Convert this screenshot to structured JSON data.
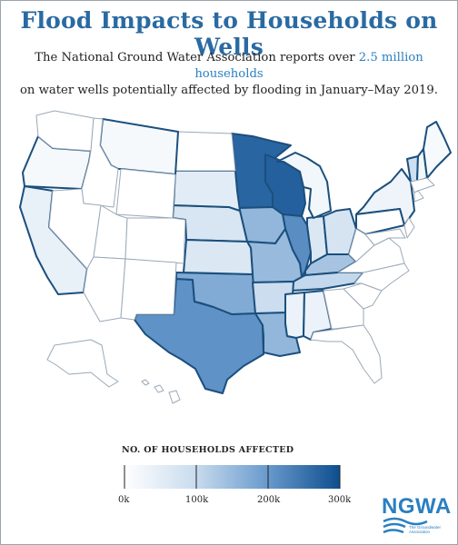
{
  "title": "Flood Impacts to Households on Wells",
  "subtitle": {
    "line1_before": "The National Ground Water Association reports over ",
    "line1_highlight": "2.5 million households",
    "line2": "on water wells potentially affected by flooding in January–May 2019."
  },
  "legend": {
    "title": "NO. OF HOUSEHOLDS AFFECTED",
    "ticks": [
      "0k",
      "100k",
      "200k",
      "300k"
    ],
    "min": 0,
    "max": 300000,
    "color_low": "#ffffff",
    "color_high": "#0e4e8e"
  },
  "logo": {
    "text": "NGWA",
    "tagline": "The Groundwater Association"
  },
  "colors": {
    "title": "#2a6aa2",
    "highlight": "#2a7fc1",
    "affected_border": "#1b4f7d",
    "unaffected_border": "#9aa9b8"
  },
  "map_data": {
    "type": "choropleth",
    "region": "United States",
    "states": [
      {
        "state": "Minnesota",
        "level": 0.9,
        "highlighted": true
      },
      {
        "state": "Wisconsin",
        "level": 0.92,
        "highlighted": true
      },
      {
        "state": "Texas",
        "level": 0.7,
        "highlighted": true
      },
      {
        "state": "Illinois",
        "level": 0.72,
        "highlighted": true
      },
      {
        "state": "Iowa",
        "level": 0.52,
        "highlighted": true
      },
      {
        "state": "Missouri",
        "level": 0.5,
        "highlighted": true
      },
      {
        "state": "Oklahoma",
        "level": 0.58,
        "highlighted": true
      },
      {
        "state": "Louisiana",
        "level": 0.52,
        "highlighted": true
      },
      {
        "state": "Kentucky",
        "level": 0.45,
        "highlighted": true
      },
      {
        "state": "Tennessee",
        "level": 0.35,
        "highlighted": true
      },
      {
        "state": "Indiana",
        "level": 0.22,
        "highlighted": true
      },
      {
        "state": "Ohio",
        "level": 0.25,
        "highlighted": true
      },
      {
        "state": "Michigan",
        "level": 0.08,
        "highlighted": true
      },
      {
        "state": "Arkansas",
        "level": 0.32,
        "highlighted": true
      },
      {
        "state": "Mississippi",
        "level": 0.12,
        "highlighted": true
      },
      {
        "state": "Alabama",
        "level": 0.12,
        "highlighted": true
      },
      {
        "state": "Nebraska",
        "level": 0.24,
        "highlighted": true
      },
      {
        "state": "Kansas",
        "level": 0.22,
        "highlighted": true
      },
      {
        "state": "South Dakota",
        "level": 0.18,
        "highlighted": true
      },
      {
        "state": "North Dakota",
        "level": 0.0,
        "highlighted": false
      },
      {
        "state": "Montana",
        "level": 0.06,
        "highlighted": true
      },
      {
        "state": "Oregon",
        "level": 0.06,
        "highlighted": true
      },
      {
        "state": "California",
        "level": 0.14,
        "highlighted": true
      },
      {
        "state": "New York",
        "level": 0.1,
        "highlighted": true
      },
      {
        "state": "Vermont",
        "level": 0.3,
        "highlighted": true
      },
      {
        "state": "New Hampshire",
        "level": 0.08,
        "highlighted": true
      },
      {
        "state": "Maine",
        "level": 0.05,
        "highlighted": true
      },
      {
        "state": "Pennsylvania",
        "level": 0.0,
        "highlighted": true
      },
      {
        "state": "West Virginia",
        "level": 0.0,
        "highlighted": false
      },
      {
        "state": "Virginia",
        "level": 0.0,
        "highlighted": false
      },
      {
        "state": "Washington",
        "level": 0.0,
        "highlighted": false
      },
      {
        "state": "Idaho",
        "level": 0.0,
        "highlighted": false
      },
      {
        "state": "Nevada",
        "level": 0.0,
        "highlighted": false
      },
      {
        "state": "Utah",
        "level": 0.0,
        "highlighted": false
      },
      {
        "state": "Arizona",
        "level": 0.0,
        "highlighted": false
      },
      {
        "state": "Wyoming",
        "level": 0.0,
        "highlighted": false
      },
      {
        "state": "Colorado",
        "level": 0.0,
        "highlighted": false
      },
      {
        "state": "New Mexico",
        "level": 0.0,
        "highlighted": false
      },
      {
        "state": "Georgia",
        "level": 0.0,
        "highlighted": false
      },
      {
        "state": "Florida",
        "level": 0.0,
        "highlighted": false
      },
      {
        "state": "South Carolina",
        "level": 0.0,
        "highlighted": false
      },
      {
        "state": "North Carolina",
        "level": 0.0,
        "highlighted": false
      },
      {
        "state": "Alaska",
        "level": 0.0,
        "highlighted": false
      },
      {
        "state": "Hawaii",
        "level": 0.0,
        "highlighted": false
      }
    ]
  }
}
